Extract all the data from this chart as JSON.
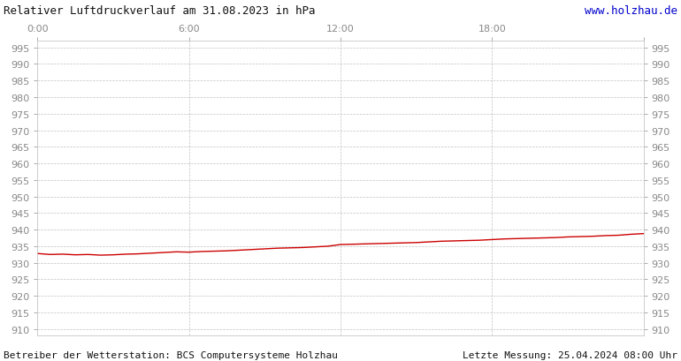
{
  "title": "Relativer Luftdruckverlauf am 31.08.2023 in hPa",
  "url": "www.holzhau.de",
  "footer_left": "Betreiber der Wetterstation: BCS Computersysteme Holzhau",
  "footer_right": "Letzte Messung: 25.04.2024 08:00 Uhr",
  "x_ticks": [
    0,
    6,
    12,
    18,
    24
  ],
  "x_tick_labels": [
    "0:00",
    "6:00",
    "12:00",
    "18:00",
    ""
  ],
  "ylim": [
    908,
    997
  ],
  "ytick_min": 910,
  "ytick_max": 995,
  "ytick_step": 5,
  "line_color": "#cc0000",
  "grid_color": "#bbbbbb",
  "bg_color": "#ffffff",
  "pressure_x": [
    0.0,
    0.5,
    1.0,
    1.5,
    2.0,
    2.5,
    3.0,
    3.5,
    4.0,
    4.5,
    5.0,
    5.5,
    6.0,
    6.5,
    7.0,
    7.5,
    8.0,
    8.5,
    9.0,
    9.5,
    10.0,
    10.5,
    11.0,
    11.5,
    12.0,
    12.5,
    13.0,
    13.5,
    14.0,
    14.5,
    15.0,
    15.5,
    16.0,
    16.5,
    17.0,
    17.5,
    18.0,
    18.5,
    19.0,
    19.5,
    20.0,
    20.5,
    21.0,
    21.5,
    22.0,
    22.5,
    23.0,
    23.5,
    24.0
  ],
  "pressure_y": [
    932.8,
    932.5,
    932.6,
    932.4,
    932.5,
    932.3,
    932.4,
    932.6,
    932.7,
    932.9,
    933.1,
    933.3,
    933.2,
    933.4,
    933.5,
    933.6,
    933.8,
    934.0,
    934.2,
    934.4,
    934.5,
    934.6,
    934.8,
    935.0,
    935.5,
    935.6,
    935.7,
    935.8,
    935.9,
    936.0,
    936.1,
    936.3,
    936.5,
    936.6,
    936.7,
    936.8,
    937.0,
    937.2,
    937.3,
    937.4,
    937.5,
    937.6,
    937.8,
    937.9,
    938.0,
    938.2,
    938.3,
    938.6,
    938.8
  ],
  "title_fontsize": 9,
  "tick_fontsize": 8,
  "footer_fontsize": 8
}
